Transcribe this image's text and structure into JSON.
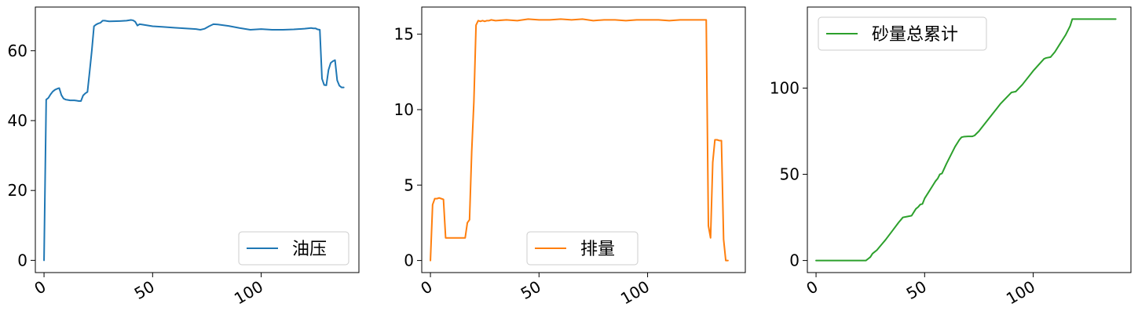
{
  "chart_data": [
    {
      "type": "line",
      "color": "#1f77b4",
      "legend_position": "lower right",
      "series": [
        {
          "name": "油压",
          "x": [
            0,
            1,
            2,
            3,
            4,
            5,
            6,
            7,
            8,
            9,
            10,
            11,
            12,
            13,
            14,
            15,
            16,
            17,
            18,
            19,
            20,
            21,
            22,
            23,
            24,
            25,
            26,
            27,
            28,
            29,
            30,
            35,
            38,
            40,
            41,
            42,
            43,
            44,
            45,
            50,
            55,
            60,
            65,
            70,
            72,
            74,
            76,
            78,
            80,
            85,
            90,
            95,
            100,
            105,
            110,
            115,
            120,
            123,
            124,
            125,
            126,
            127,
            128,
            129,
            130,
            131,
            132,
            133,
            134,
            135,
            136,
            137,
            138
          ],
          "y": [
            0,
            46,
            46.5,
            47.5,
            48.3,
            48.8,
            49.1,
            49.3,
            47.3,
            46.3,
            46,
            45.9,
            45.8,
            45.8,
            45.8,
            45.7,
            45.6,
            45.6,
            47.2,
            47.8,
            48.2,
            54,
            60,
            67,
            67.5,
            67.8,
            68,
            68.6,
            68.6,
            68.5,
            68.4,
            68.5,
            68.6,
            68.8,
            68.7,
            68.3,
            67.2,
            67.6,
            67.5,
            67,
            66.8,
            66.6,
            66.4,
            66.2,
            66.0,
            66.3,
            67.0,
            67.6,
            67.5,
            67.1,
            66.5,
            66.0,
            66.2,
            66.0,
            66.0,
            66.1,
            66.3,
            66.5,
            66.4,
            66.4,
            66.1,
            66.0,
            52,
            50.2,
            50.1,
            54.5,
            56.5,
            57.0,
            57.3,
            51.5,
            50,
            49.5,
            49.5
          ],
          "color": "#1f77b4"
        }
      ],
      "xlim": [
        -4,
        145
      ],
      "ylim": [
        -3.5,
        72.5
      ],
      "xticks": [
        0,
        50,
        100
      ],
      "yticks": [
        0,
        20,
        40,
        60
      ],
      "xtick_labels": [
        "0",
        "50",
        "100"
      ],
      "ytick_labels": [
        "0",
        "20",
        "40",
        "60"
      ]
    },
    {
      "type": "line",
      "color": "#ff7f0e",
      "legend_position": "lower center",
      "series": [
        {
          "name": "排量",
          "x": [
            0,
            1,
            2,
            3,
            4,
            5,
            6,
            7,
            8,
            9,
            10,
            12,
            14,
            16,
            17,
            18,
            19,
            20,
            21,
            22,
            23,
            24,
            25,
            26,
            27,
            28,
            30,
            35,
            40,
            45,
            50,
            55,
            60,
            65,
            70,
            75,
            80,
            85,
            90,
            95,
            100,
            105,
            110,
            115,
            120,
            125,
            127,
            128,
            129,
            130,
            131,
            132,
            133,
            134,
            135,
            136,
            137
          ],
          "y": [
            0,
            3.7,
            4.1,
            4.1,
            4.15,
            4.1,
            4.05,
            1.5,
            1.5,
            1.5,
            1.5,
            1.5,
            1.5,
            1.5,
            2.5,
            2.7,
            7.2,
            10.5,
            15.6,
            15.9,
            15.85,
            15.9,
            15.85,
            15.9,
            15.9,
            15.95,
            15.9,
            15.95,
            15.9,
            16.0,
            15.95,
            15.95,
            16.0,
            15.95,
            16.0,
            15.9,
            15.95,
            15.95,
            15.9,
            15.95,
            15.95,
            15.95,
            15.9,
            15.95,
            15.95,
            15.95,
            15.95,
            2.3,
            1.5,
            6.5,
            8.0,
            8.0,
            7.95,
            7.95,
            1.4,
            0,
            0
          ],
          "color": "#ff7f0e"
        }
      ],
      "xlim": [
        -4,
        145
      ],
      "ylim": [
        -0.8,
        16.8
      ],
      "xticks": [
        0,
        50,
        100
      ],
      "yticks": [
        0,
        5,
        10,
        15
      ],
      "xtick_labels": [
        "0",
        "50",
        "100"
      ],
      "ytick_labels": [
        "0",
        "5",
        "10",
        "15"
      ]
    },
    {
      "type": "line",
      "color": "#2ca02c",
      "legend_position": "upper left",
      "series": [
        {
          "name": "砂量总累计",
          "x": [
            0,
            5,
            10,
            15,
            20,
            23,
            24,
            25,
            26,
            27,
            28,
            30,
            32,
            35,
            38,
            40,
            42,
            44,
            45,
            46,
            47,
            48,
            49,
            50,
            52,
            54,
            55,
            56,
            57,
            58,
            60,
            62,
            64,
            66,
            67,
            68,
            70,
            72,
            73,
            75,
            80,
            85,
            90,
            92,
            95,
            100,
            105,
            106,
            108,
            110,
            112,
            115,
            117,
            118,
            120,
            125,
            130,
            135,
            138
          ],
          "y": [
            0,
            0,
            0,
            0,
            0,
            0,
            1,
            2,
            4,
            5,
            6,
            9,
            12,
            17,
            22,
            25,
            25.5,
            26,
            28,
            30,
            31,
            32.5,
            32.8,
            36,
            40,
            44,
            46,
            47.5,
            50,
            50.5,
            56,
            61,
            66,
            70,
            71.5,
            71.8,
            72,
            72,
            72.5,
            75,
            83,
            91,
            97.5,
            98,
            102,
            110,
            117,
            117.5,
            118,
            121,
            125,
            131,
            136,
            140,
            140,
            140,
            140,
            140,
            140
          ],
          "color": "#2ca02c"
        }
      ],
      "xlim": [
        -4,
        145
      ],
      "ylim": [
        -7,
        147
      ],
      "xticks": [
        0,
        50,
        100
      ],
      "yticks": [
        0,
        50,
        100
      ],
      "xtick_labels": [
        "0",
        "50",
        "100"
      ],
      "ytick_labels": [
        "0",
        "50",
        "100"
      ]
    }
  ]
}
